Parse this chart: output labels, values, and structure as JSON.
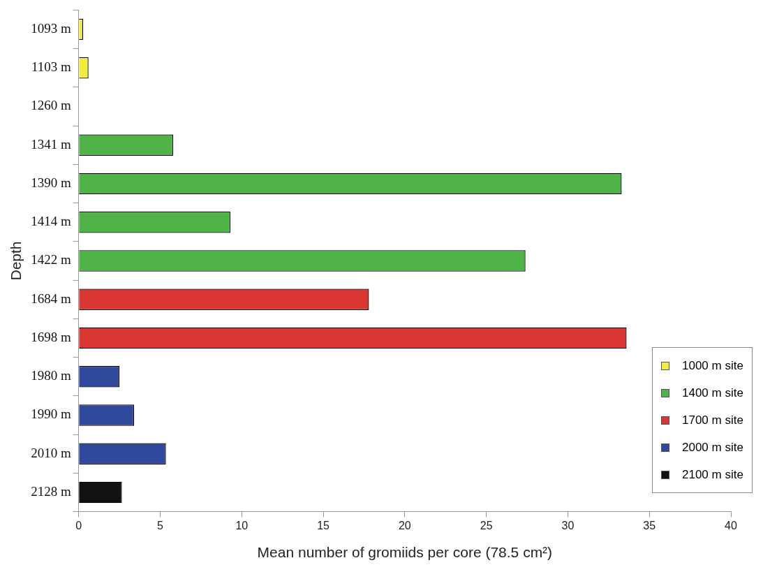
{
  "chart_data": {
    "type": "bar",
    "orientation": "horizontal",
    "xlabel": "Mean number of gromiids per core (78.5 cm²)",
    "ylabel": "Depth",
    "categories": [
      "1093 m",
      "1103 m",
      "1260 m",
      "1341 m",
      "1390 m",
      "1414 m",
      "1422 m",
      "1684 m",
      "1698 m",
      "1980 m",
      "1990 m",
      "2010 m",
      "2128 m"
    ],
    "series": [
      {
        "name": "1000 m site",
        "color": "#f2ec3c",
        "values": [
          0.27,
          0.6,
          null,
          null,
          null,
          null,
          null,
          null,
          null,
          null,
          null,
          null,
          null
        ]
      },
      {
        "name": "1400 m site",
        "color": "#4fb348",
        "values": [
          null,
          null,
          null,
          5.8,
          33.3,
          9.3,
          27.4,
          null,
          null,
          null,
          null,
          null,
          null
        ]
      },
      {
        "name": "1700 m site",
        "color": "#da3732",
        "values": [
          null,
          null,
          null,
          null,
          null,
          null,
          null,
          17.8,
          33.6,
          null,
          null,
          null,
          null
        ]
      },
      {
        "name": "2000 m site",
        "color": "#2f4a9c",
        "values": [
          null,
          null,
          null,
          null,
          null,
          null,
          null,
          null,
          null,
          2.5,
          3.4,
          5.35,
          null
        ]
      },
      {
        "name": "2100 m site",
        "color": "#111111",
        "values": [
          null,
          null,
          null,
          null,
          null,
          null,
          null,
          null,
          null,
          null,
          null,
          null,
          2.65
        ]
      }
    ],
    "xlim": [
      0,
      40
    ],
    "xticks": [
      0,
      5,
      10,
      15,
      20,
      25,
      30,
      35,
      40
    ],
    "grid": false,
    "legend": "bottom right"
  }
}
